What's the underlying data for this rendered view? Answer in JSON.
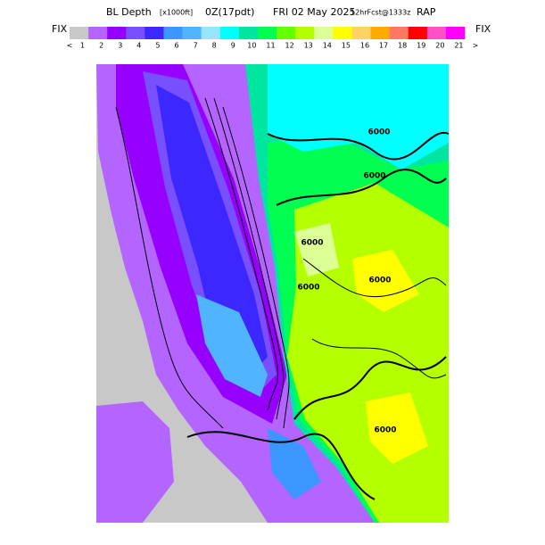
{
  "header": {
    "title_main": "BL Depth",
    "units": "[x1000ft]",
    "valid": "0Z(17pdt)",
    "date": "FRI 02 May 2025",
    "forecast": "12hrFcst@1333z",
    "model": "RAP"
  },
  "colorbar": {
    "left_label": "FIX",
    "right_label": "FIX",
    "under": "<",
    "over": ">",
    "labels": [
      1,
      2,
      3,
      4,
      5,
      6,
      7,
      8,
      9,
      10,
      11,
      12,
      13,
      14,
      15,
      16,
      17,
      18,
      19,
      20,
      21
    ],
    "colors": [
      "#c8c8c8",
      "#b464ff",
      "#9600ff",
      "#7850ff",
      "#3c28ff",
      "#3c96ff",
      "#50b4ff",
      "#96e6ff",
      "#00ffff",
      "#00e6a0",
      "#00ff50",
      "#64ff00",
      "#b4ff00",
      "#dcff96",
      "#ffff00",
      "#ffd264",
      "#ffaa00",
      "#ff7864",
      "#ff0000",
      "#ff50c8",
      "#ff00ff"
    ]
  },
  "map": {
    "contour_labels": [
      "6000",
      "6000",
      "6000",
      "6000",
      "6000",
      "6000"
    ]
  }
}
